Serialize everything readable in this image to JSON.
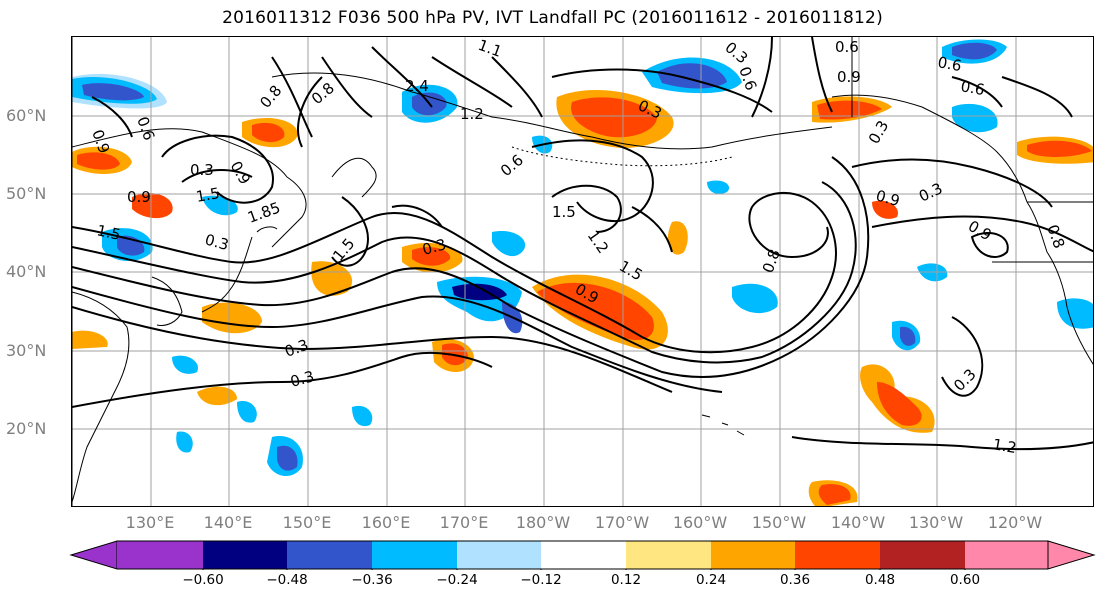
{
  "title": "2016011312 F036 500 hPa PV, IVT Landfall PC (2016011612 - 2016011812)",
  "map": {
    "projection": "PlateCarree",
    "extent_lon": [
      120,
      250
    ],
    "extent_lat": [
      10,
      70
    ],
    "lat_labels": [
      "60°N",
      "50°N",
      "40°N",
      "30°N",
      "20°N"
    ],
    "lon_labels": [
      "130°E",
      "140°E",
      "150°E",
      "160°E",
      "170°E",
      "180°W",
      "170°W",
      "160°W",
      "150°W",
      "140°W",
      "130°W",
      "120°W"
    ],
    "gridline_color": "#a0a0a0",
    "coastline_color": "#000000",
    "contour_color": "#000000",
    "contour_labels": [
      "1.1",
      "2.4",
      "1.2",
      "0.8",
      "0.3",
      "0.6",
      "0.9",
      "1.5",
      "1.85",
      "0.3",
      "1.5",
      "0.6",
      "1.5",
      "1.2",
      "0.3",
      "0.9",
      "1.5",
      "0.8",
      "0.3",
      "0.6",
      "0.3",
      "0.6",
      "0.9",
      "0.6",
      "0.6",
      "0.3",
      "0.9",
      "0.3",
      "0.3",
      "0.3",
      "0.9",
      "0.8",
      "0.3",
      "1.2",
      "0.9",
      "1.5",
      "0.9",
      "0.8"
    ]
  },
  "colorbar": {
    "colors": [
      "#9933cc",
      "#000080",
      "#3355cc",
      "#00bbff",
      "#b0e2ff",
      "#ffffff",
      "#ffe680",
      "#ffa500",
      "#ff4500",
      "#b22222",
      "#ff88aa"
    ],
    "tick_labels": [
      "−0.60",
      "−0.48",
      "−0.36",
      "−0.24",
      "−0.12",
      "0.12",
      "0.24",
      "0.36",
      "0.48",
      "0.60"
    ]
  }
}
